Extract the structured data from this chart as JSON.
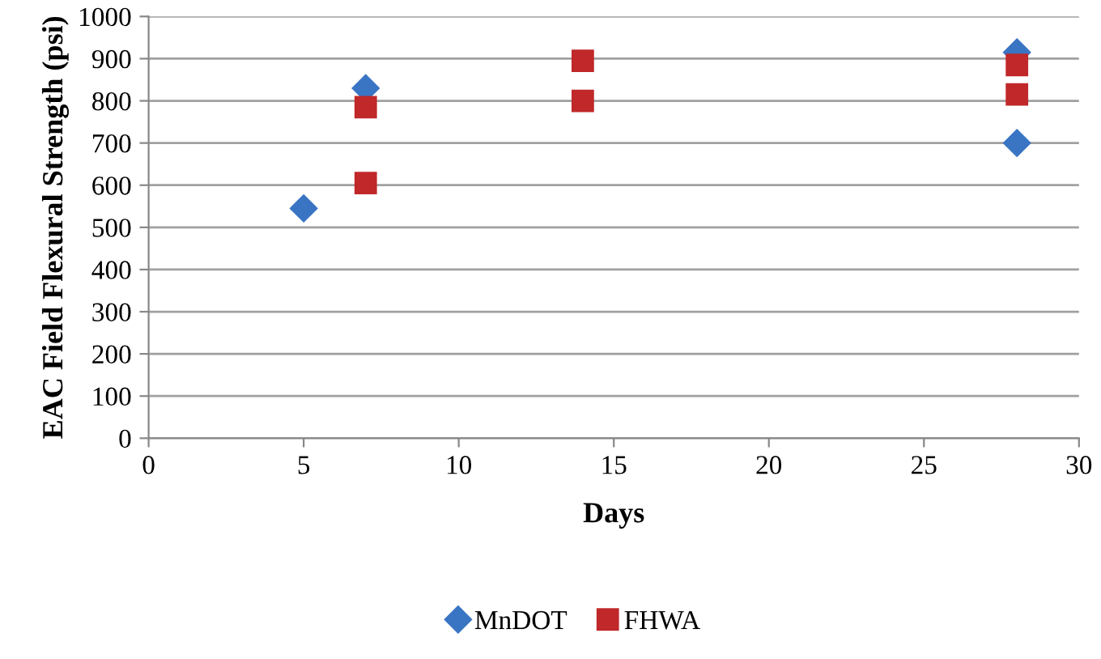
{
  "chart_data": {
    "type": "scatter",
    "xlabel": "Days",
    "ylabel": "EAC Field Flexural Strength (psi)",
    "xlim": [
      0,
      30
    ],
    "xticks": [
      0,
      5,
      10,
      15,
      20,
      25,
      30
    ],
    "ylim": [
      0,
      1000
    ],
    "yticks": [
      0,
      100,
      200,
      300,
      400,
      500,
      600,
      700,
      800,
      900,
      1000
    ],
    "grid": "y",
    "legend": "bottom",
    "series": [
      {
        "name": "MnDOT",
        "color": "#3a75c4",
        "marker": "diamond",
        "x": [
          5,
          7,
          28,
          28
        ],
        "values": [
          545,
          830,
          915,
          700
        ]
      },
      {
        "name": "FHWA",
        "color": "#c0282a",
        "marker": "square",
        "x": [
          7,
          7,
          14,
          14,
          28,
          28
        ],
        "values": [
          785,
          605,
          895,
          800,
          885,
          815
        ]
      }
    ]
  }
}
